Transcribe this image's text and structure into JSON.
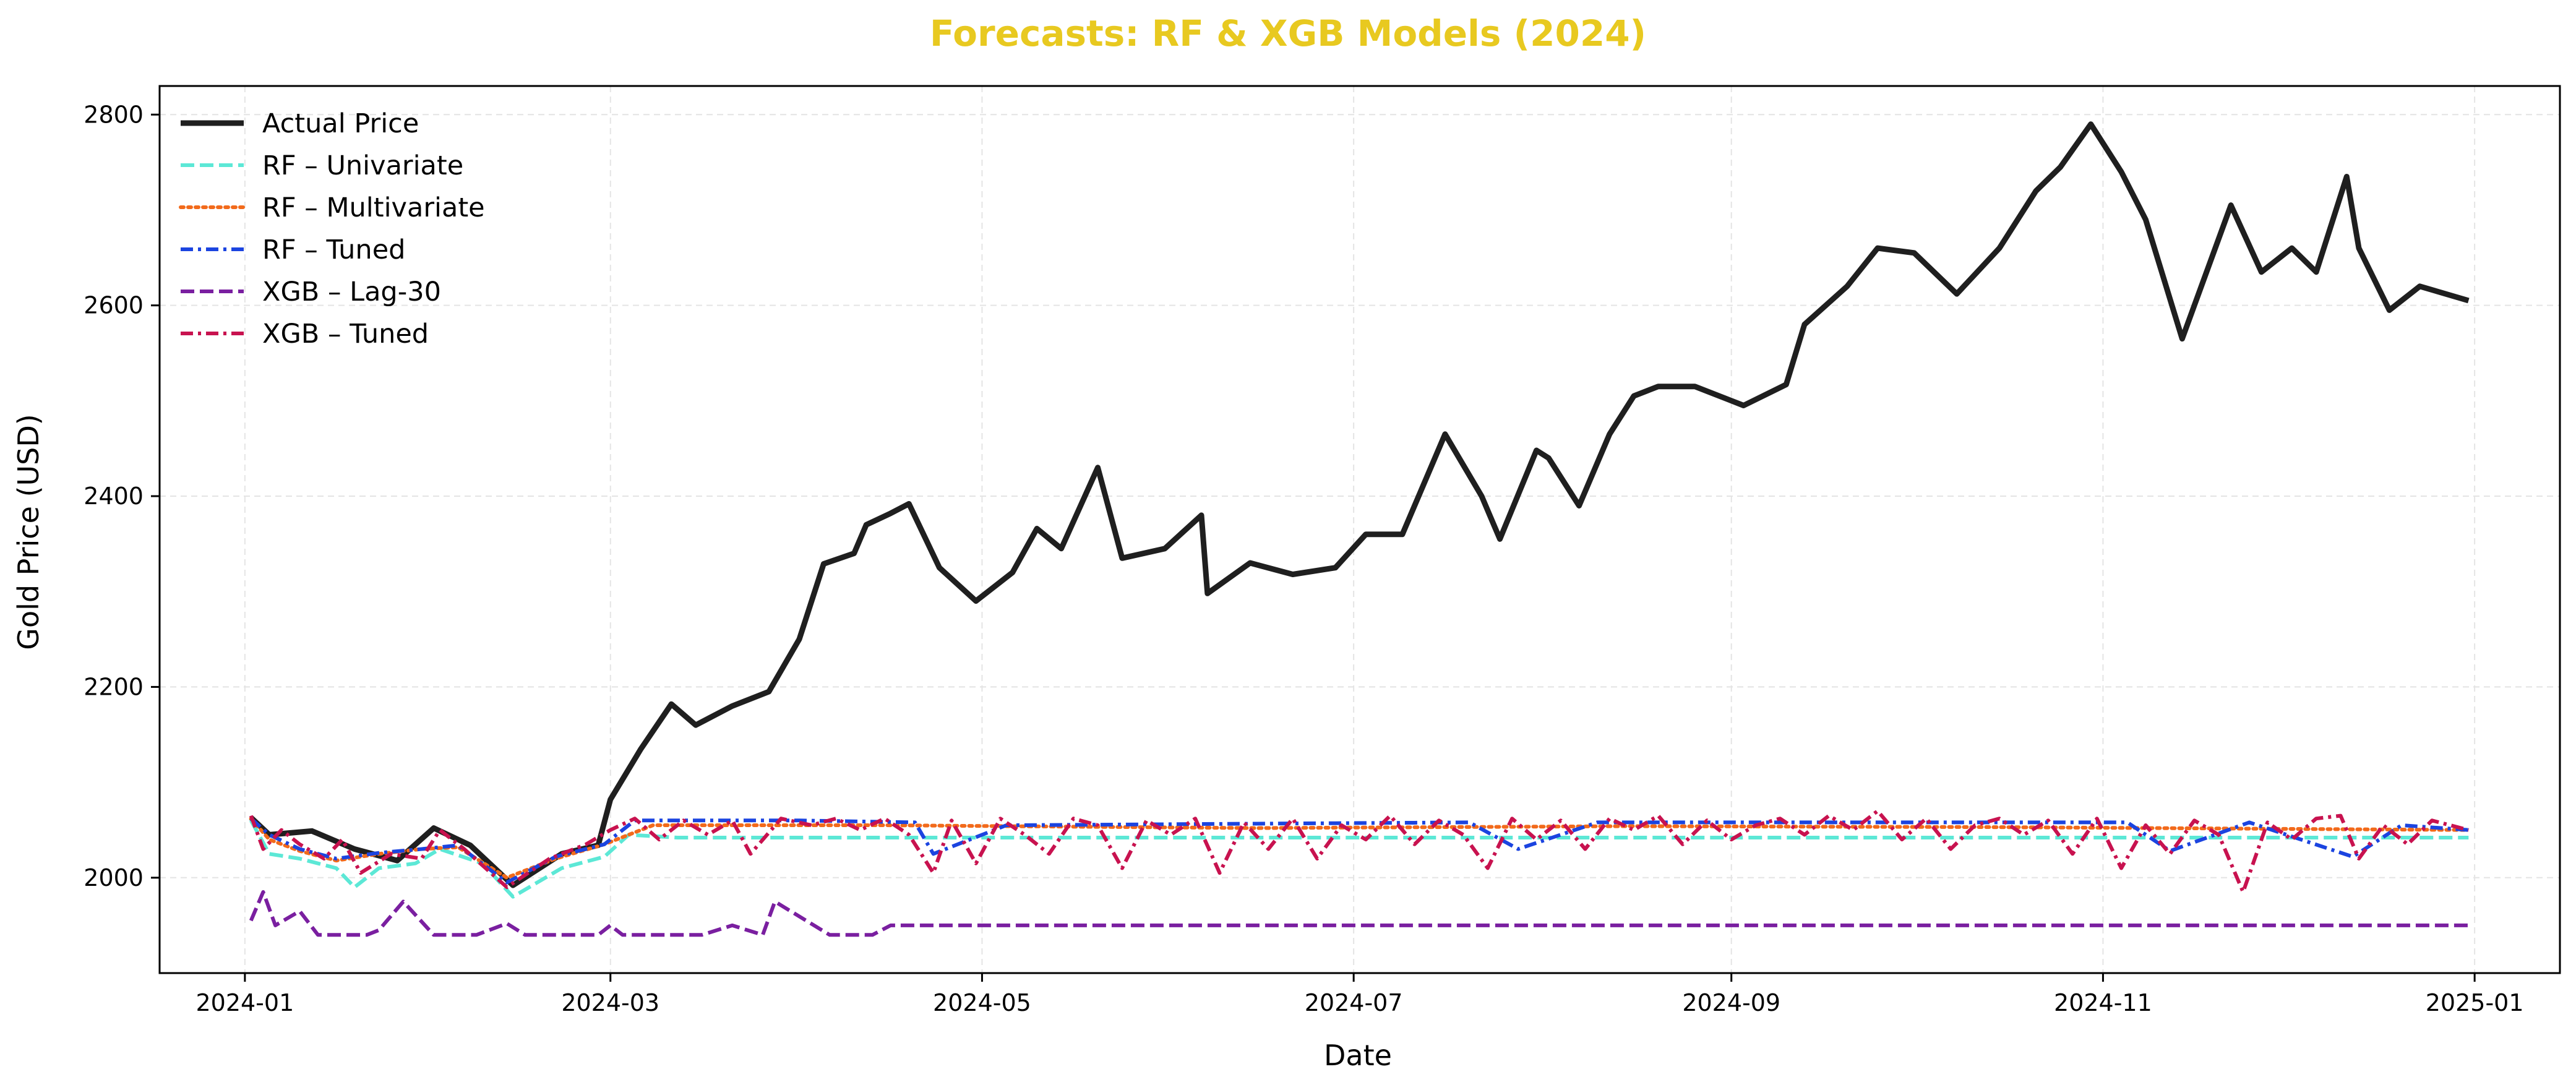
{
  "chart_data": {
    "type": "line",
    "title": "Forecasts: RF & XGB Models (2024)",
    "title_color": "#E8C920",
    "xlabel": "Date",
    "ylabel": "Gold Price (USD)",
    "x_start": "2024-01-02",
    "x_end": "2024-12-31",
    "xlim": [
      "2023-12-18",
      "2025-01-15"
    ],
    "ylim": [
      1900,
      2830
    ],
    "x_ticks": [
      "2024-01",
      "2024-03",
      "2024-05",
      "2024-07",
      "2024-09",
      "2024-11",
      "2025-01"
    ],
    "y_ticks": [
      2000,
      2200,
      2400,
      2600,
      2800
    ],
    "grid": true,
    "legend_position": "upper-left",
    "series": [
      {
        "name": "Actual Price",
        "color": "#1f1f1f",
        "style": "solid",
        "points": [
          [
            "2024-01-02",
            2063
          ],
          [
            "2024-01-05",
            2045
          ],
          [
            "2024-01-12",
            2049
          ],
          [
            "2024-01-19",
            2030
          ],
          [
            "2024-01-26",
            2018
          ],
          [
            "2024-02-01",
            2052
          ],
          [
            "2024-02-07",
            2034
          ],
          [
            "2024-02-14",
            1992
          ],
          [
            "2024-02-22",
            2025
          ],
          [
            "2024-02-28",
            2034
          ],
          [
            "2024-03-01",
            2082
          ],
          [
            "2024-03-06",
            2135
          ],
          [
            "2024-03-11",
            2182
          ],
          [
            "2024-03-15",
            2160
          ],
          [
            "2024-03-21",
            2180
          ],
          [
            "2024-03-27",
            2195
          ],
          [
            "2024-04-01",
            2250
          ],
          [
            "2024-04-05",
            2329
          ],
          [
            "2024-04-10",
            2340
          ],
          [
            "2024-04-12",
            2370
          ],
          [
            "2024-04-16",
            2382
          ],
          [
            "2024-04-19",
            2392
          ],
          [
            "2024-04-24",
            2325
          ],
          [
            "2024-04-30",
            2290
          ],
          [
            "2024-05-06",
            2320
          ],
          [
            "2024-05-10",
            2366
          ],
          [
            "2024-05-14",
            2345
          ],
          [
            "2024-05-20",
            2430
          ],
          [
            "2024-05-24",
            2335
          ],
          [
            "2024-05-31",
            2345
          ],
          [
            "2024-06-06",
            2380
          ],
          [
            "2024-06-07",
            2298
          ],
          [
            "2024-06-14",
            2330
          ],
          [
            "2024-06-21",
            2318
          ],
          [
            "2024-06-28",
            2325
          ],
          [
            "2024-07-03",
            2360
          ],
          [
            "2024-07-09",
            2360
          ],
          [
            "2024-07-16",
            2465
          ],
          [
            "2024-07-22",
            2400
          ],
          [
            "2024-07-25",
            2355
          ],
          [
            "2024-07-31",
            2448
          ],
          [
            "2024-08-02",
            2440
          ],
          [
            "2024-08-07",
            2390
          ],
          [
            "2024-08-12",
            2465
          ],
          [
            "2024-08-16",
            2505
          ],
          [
            "2024-08-20",
            2515
          ],
          [
            "2024-08-26",
            2515
          ],
          [
            "2024-09-03",
            2495
          ],
          [
            "2024-09-10",
            2517
          ],
          [
            "2024-09-13",
            2580
          ],
          [
            "2024-09-20",
            2620
          ],
          [
            "2024-09-25",
            2660
          ],
          [
            "2024-10-01",
            2655
          ],
          [
            "2024-10-08",
            2612
          ],
          [
            "2024-10-15",
            2660
          ],
          [
            "2024-10-21",
            2720
          ],
          [
            "2024-10-25",
            2745
          ],
          [
            "2024-10-30",
            2790
          ],
          [
            "2024-11-04",
            2740
          ],
          [
            "2024-11-08",
            2690
          ],
          [
            "2024-11-14",
            2565
          ],
          [
            "2024-11-22",
            2705
          ],
          [
            "2024-11-27",
            2635
          ],
          [
            "2024-12-02",
            2660
          ],
          [
            "2024-12-06",
            2635
          ],
          [
            "2024-12-11",
            2735
          ],
          [
            "2024-12-13",
            2660
          ],
          [
            "2024-12-18",
            2595
          ],
          [
            "2024-12-23",
            2620
          ],
          [
            "2024-12-31",
            2605
          ]
        ]
      },
      {
        "name": "RF – Univariate",
        "color": "#5ce8d6",
        "style": "dashed",
        "points": [
          [
            "2024-01-02",
            2060
          ],
          [
            "2024-01-05",
            2025
          ],
          [
            "2024-01-10",
            2020
          ],
          [
            "2024-01-16",
            2010
          ],
          [
            "2024-01-19",
            1990
          ],
          [
            "2024-01-23",
            2010
          ],
          [
            "2024-01-29",
            2015
          ],
          [
            "2024-02-02",
            2030
          ],
          [
            "2024-02-09",
            2015
          ],
          [
            "2024-02-14",
            1980
          ],
          [
            "2024-02-22",
            2010
          ],
          [
            "2024-02-29",
            2022
          ],
          [
            "2024-03-04",
            2045
          ],
          [
            "2024-03-12",
            2042
          ],
          [
            "2024-04-01",
            2042
          ],
          [
            "2024-12-31",
            2042
          ]
        ]
      },
      {
        "name": "RF – Multivariate",
        "color": "#f26a1b",
        "style": "dotted",
        "points": [
          [
            "2024-01-02",
            2062
          ],
          [
            "2024-01-05",
            2040
          ],
          [
            "2024-01-10",
            2028
          ],
          [
            "2024-01-16",
            2018
          ],
          [
            "2024-01-23",
            2025
          ],
          [
            "2024-01-30",
            2030
          ],
          [
            "2024-02-05",
            2032
          ],
          [
            "2024-02-13",
            2000
          ],
          [
            "2024-02-21",
            2020
          ],
          [
            "2024-02-29",
            2035
          ],
          [
            "2024-03-08",
            2055
          ],
          [
            "2024-04-15",
            2055
          ],
          [
            "2024-06-15",
            2052
          ],
          [
            "2024-08-15",
            2054
          ],
          [
            "2024-10-15",
            2053
          ],
          [
            "2024-12-31",
            2050
          ]
        ]
      },
      {
        "name": "RF – Tuned",
        "color": "#1b44e0",
        "style": "dashdot",
        "points": [
          [
            "2024-01-02",
            2062
          ],
          [
            "2024-01-05",
            2045
          ],
          [
            "2024-01-10",
            2030
          ],
          [
            "2024-01-16",
            2020
          ],
          [
            "2024-01-23",
            2026
          ],
          [
            "2024-01-30",
            2030
          ],
          [
            "2024-02-05",
            2034
          ],
          [
            "2024-02-13",
            1995
          ],
          [
            "2024-02-21",
            2022
          ],
          [
            "2024-02-29",
            2035
          ],
          [
            "2024-03-05",
            2060
          ],
          [
            "2024-04-01",
            2060
          ],
          [
            "2024-04-20",
            2058
          ],
          [
            "2024-04-23",
            2025
          ],
          [
            "2024-05-05",
            2055
          ],
          [
            "2024-07-20",
            2058
          ],
          [
            "2024-07-28",
            2030
          ],
          [
            "2024-08-10",
            2058
          ],
          [
            "2024-09-10",
            2058
          ],
          [
            "2024-10-12",
            2058
          ],
          [
            "2024-11-05",
            2058
          ],
          [
            "2024-11-12",
            2028
          ],
          [
            "2024-11-25",
            2058
          ],
          [
            "2024-12-12",
            2022
          ],
          [
            "2024-12-20",
            2055
          ],
          [
            "2024-12-31",
            2050
          ]
        ]
      },
      {
        "name": "XGB – Lag-30",
        "color": "#7a1fa0",
        "style": "dashed",
        "points": [
          [
            "2024-01-02",
            1955
          ],
          [
            "2024-01-04",
            1985
          ],
          [
            "2024-01-06",
            1950
          ],
          [
            "2024-01-10",
            1965
          ],
          [
            "2024-01-13",
            1940
          ],
          [
            "2024-01-21",
            1940
          ],
          [
            "2024-01-23",
            1945
          ],
          [
            "2024-01-27",
            1975
          ],
          [
            "2024-02-01",
            1940
          ],
          [
            "2024-02-08",
            1940
          ],
          [
            "2024-02-13",
            1952
          ],
          [
            "2024-02-16",
            1940
          ],
          [
            "2024-02-28",
            1940
          ],
          [
            "2024-03-01",
            1950
          ],
          [
            "2024-03-03",
            1940
          ],
          [
            "2024-03-16",
            1940
          ],
          [
            "2024-03-21",
            1950
          ],
          [
            "2024-03-26",
            1940
          ],
          [
            "2024-03-28",
            1975
          ],
          [
            "2024-04-06",
            1940
          ],
          [
            "2024-04-13",
            1940
          ],
          [
            "2024-04-16",
            1950
          ],
          [
            "2024-12-31",
            1950
          ]
        ]
      },
      {
        "name": "XGB – Tuned",
        "color": "#c8124f",
        "style": "dashdot",
        "points": [
          [
            "2024-01-02",
            2065
          ],
          [
            "2024-01-04",
            2030
          ],
          [
            "2024-01-07",
            2050
          ],
          [
            "2024-01-10",
            2035
          ],
          [
            "2024-01-14",
            2020
          ],
          [
            "2024-01-17",
            2040
          ],
          [
            "2024-01-20",
            2005
          ],
          [
            "2024-01-25",
            2025
          ],
          [
            "2024-01-30",
            2020
          ],
          [
            "2024-02-02",
            2050
          ],
          [
            "2024-02-06",
            2030
          ],
          [
            "2024-02-13",
            1990
          ],
          [
            "2024-02-20",
            2020
          ],
          [
            "2024-02-26",
            2035
          ],
          [
            "2024-03-01",
            2050
          ],
          [
            "2024-03-05",
            2062
          ],
          [
            "2024-03-09",
            2040
          ],
          [
            "2024-03-13",
            2060
          ],
          [
            "2024-03-17",
            2045
          ],
          [
            "2024-03-21",
            2060
          ],
          [
            "2024-03-24",
            2025
          ],
          [
            "2024-03-29",
            2062
          ],
          [
            "2024-04-03",
            2055
          ],
          [
            "2024-04-07",
            2062
          ],
          [
            "2024-04-11",
            2050
          ],
          [
            "2024-04-15",
            2062
          ],
          [
            "2024-04-19",
            2045
          ],
          [
            "2024-04-23",
            2005
          ],
          [
            "2024-04-26",
            2060
          ],
          [
            "2024-04-30",
            2015
          ],
          [
            "2024-05-04",
            2062
          ],
          [
            "2024-05-08",
            2045
          ],
          [
            "2024-05-12",
            2025
          ],
          [
            "2024-05-16",
            2062
          ],
          [
            "2024-05-20",
            2055
          ],
          [
            "2024-05-24",
            2010
          ],
          [
            "2024-05-28",
            2060
          ],
          [
            "2024-06-01",
            2045
          ],
          [
            "2024-06-05",
            2062
          ],
          [
            "2024-06-09",
            2005
          ],
          [
            "2024-06-13",
            2058
          ],
          [
            "2024-06-17",
            2030
          ],
          [
            "2024-06-21",
            2062
          ],
          [
            "2024-06-25",
            2020
          ],
          [
            "2024-06-29",
            2055
          ],
          [
            "2024-07-03",
            2040
          ],
          [
            "2024-07-07",
            2065
          ],
          [
            "2024-07-11",
            2035
          ],
          [
            "2024-07-15",
            2060
          ],
          [
            "2024-07-19",
            2045
          ],
          [
            "2024-07-23",
            2010
          ],
          [
            "2024-07-27",
            2062
          ],
          [
            "2024-07-31",
            2040
          ],
          [
            "2024-08-04",
            2060
          ],
          [
            "2024-08-08",
            2030
          ],
          [
            "2024-08-12",
            2062
          ],
          [
            "2024-08-16",
            2050
          ],
          [
            "2024-08-20",
            2065
          ],
          [
            "2024-08-24",
            2035
          ],
          [
            "2024-08-28",
            2060
          ],
          [
            "2024-09-01",
            2040
          ],
          [
            "2024-09-05",
            2055
          ],
          [
            "2024-09-09",
            2062
          ],
          [
            "2024-09-13",
            2045
          ],
          [
            "2024-09-17",
            2065
          ],
          [
            "2024-09-21",
            2050
          ],
          [
            "2024-09-25",
            2070
          ],
          [
            "2024-09-29",
            2040
          ],
          [
            "2024-10-03",
            2062
          ],
          [
            "2024-10-07",
            2030
          ],
          [
            "2024-10-11",
            2055
          ],
          [
            "2024-10-15",
            2062
          ],
          [
            "2024-10-19",
            2045
          ],
          [
            "2024-10-23",
            2060
          ],
          [
            "2024-10-27",
            2025
          ],
          [
            "2024-10-31",
            2062
          ],
          [
            "2024-11-04",
            2010
          ],
          [
            "2024-11-08",
            2055
          ],
          [
            "2024-11-12",
            2025
          ],
          [
            "2024-11-16",
            2060
          ],
          [
            "2024-11-20",
            2045
          ],
          [
            "2024-11-24",
            1985
          ],
          [
            "2024-11-28",
            2058
          ],
          [
            "2024-12-02",
            2040
          ],
          [
            "2024-12-06",
            2062
          ],
          [
            "2024-12-10",
            2065
          ],
          [
            "2024-12-13",
            2020
          ],
          [
            "2024-12-17",
            2055
          ],
          [
            "2024-12-21",
            2035
          ],
          [
            "2024-12-25",
            2060
          ],
          [
            "2024-12-31",
            2050
          ]
        ]
      }
    ]
  }
}
